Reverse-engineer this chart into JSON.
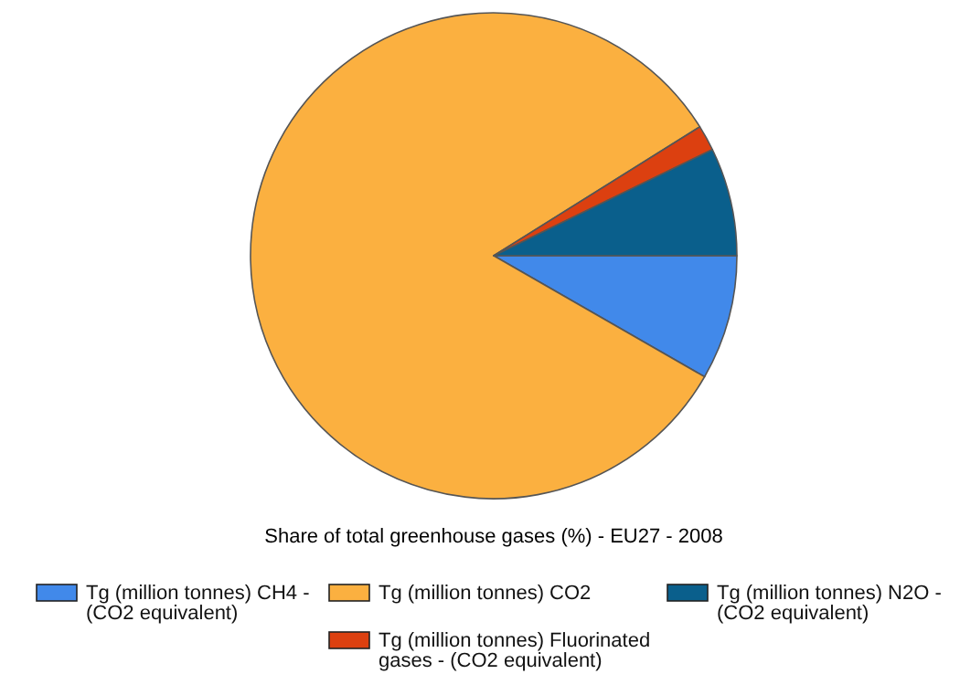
{
  "chart_data": {
    "type": "pie",
    "title": "Share of total greenhouse gases (%) - EU27 - 2008",
    "categories": [
      "Tg (million tonnes) CH4 - (CO2 equivalent)",
      "Tg (million tonnes) CO2",
      "Tg (million tonnes) Fluorinated gases - (CO2 equivalent)",
      "Tg (million tonnes) N2O - (CO2 equivalent)"
    ],
    "values": [
      8.3,
      82.8,
      1.7,
      7.2
    ],
    "colors": [
      "#4189ea",
      "#fbb040",
      "#dc4010",
      "#0a5f8c"
    ],
    "legend": "bottom"
  }
}
